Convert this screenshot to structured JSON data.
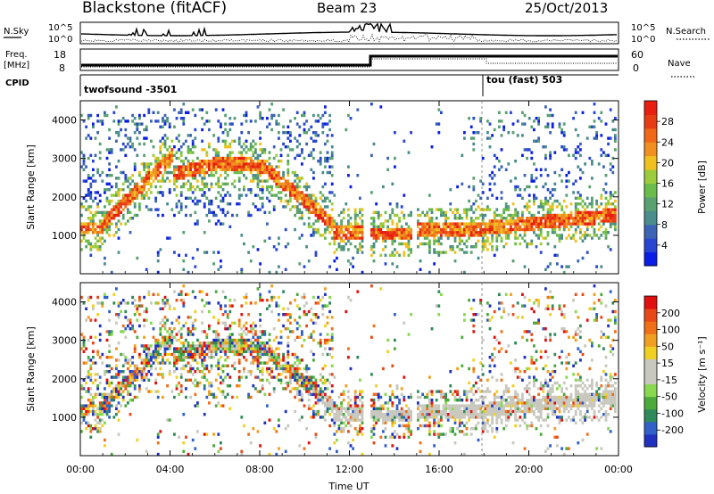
{
  "header": {
    "title": "Blackstone (fitACF)",
    "beam": "Beam 23",
    "date": "25/Oct/2013"
  },
  "status_panels": {
    "nsky_label": "N.Sky",
    "nsky_ticks": [
      "10^5",
      "10^0"
    ],
    "nsearch_label": "N.Search",
    "nsearch_ticks": [
      "10^5",
      "10^0"
    ],
    "freq_label_line1": "Freq.",
    "freq_label_line2": "[MHz]",
    "freq_ticks": [
      "18",
      "8"
    ],
    "nave_label": "Nave",
    "nave_ticks": [
      "60",
      "0"
    ],
    "cpid_label": "CPID",
    "cpid_1": "twofsound -3501",
    "cpid_2": "tou (fast) 503"
  },
  "chart_data": [
    {
      "type": "heatmap",
      "name": "power",
      "ylabel": "Slant Range [km]",
      "yticks": [
        "4000",
        "3000",
        "2000",
        "1000"
      ],
      "ylim": [
        0,
        4500
      ],
      "colorbar_label": "Power [dB]",
      "colorbar_ticks": [
        "28",
        "24",
        "20",
        "16",
        "12",
        "8",
        "4"
      ],
      "colors": [
        "#0a1ee6",
        "#2846d2",
        "#3c64b4",
        "#4b8c8c",
        "#5aa070",
        "#6cbc4c",
        "#9ccc3c",
        "#f0c020",
        "#f09020",
        "#f06818",
        "#e83c14",
        "#e81e10"
      ]
    },
    {
      "type": "heatmap",
      "name": "velocity",
      "ylabel": "Slant Range [km]",
      "yticks": [
        "4000",
        "3000",
        "2000",
        "1000"
      ],
      "ylim": [
        0,
        4500
      ],
      "colorbar_label": "Velocity [m s⁻¹]",
      "colorbar_ticks": [
        "200",
        "100",
        "50",
        "15",
        "-15",
        "-50",
        "-100",
        "-200"
      ],
      "colors": [
        "#2030c0",
        "#3060c8",
        "#2e8a5a",
        "#4caa3c",
        "#88d850",
        "#c8c8be",
        "#c8c8be",
        "#f0d020",
        "#f0a020",
        "#f07018",
        "#e84818",
        "#e01010"
      ]
    }
  ],
  "xaxis": {
    "ticks": [
      "00:00",
      "04:00",
      "08:00",
      "12:00",
      "16:00",
      "20:00",
      "00:00"
    ],
    "label": "Time UT"
  }
}
